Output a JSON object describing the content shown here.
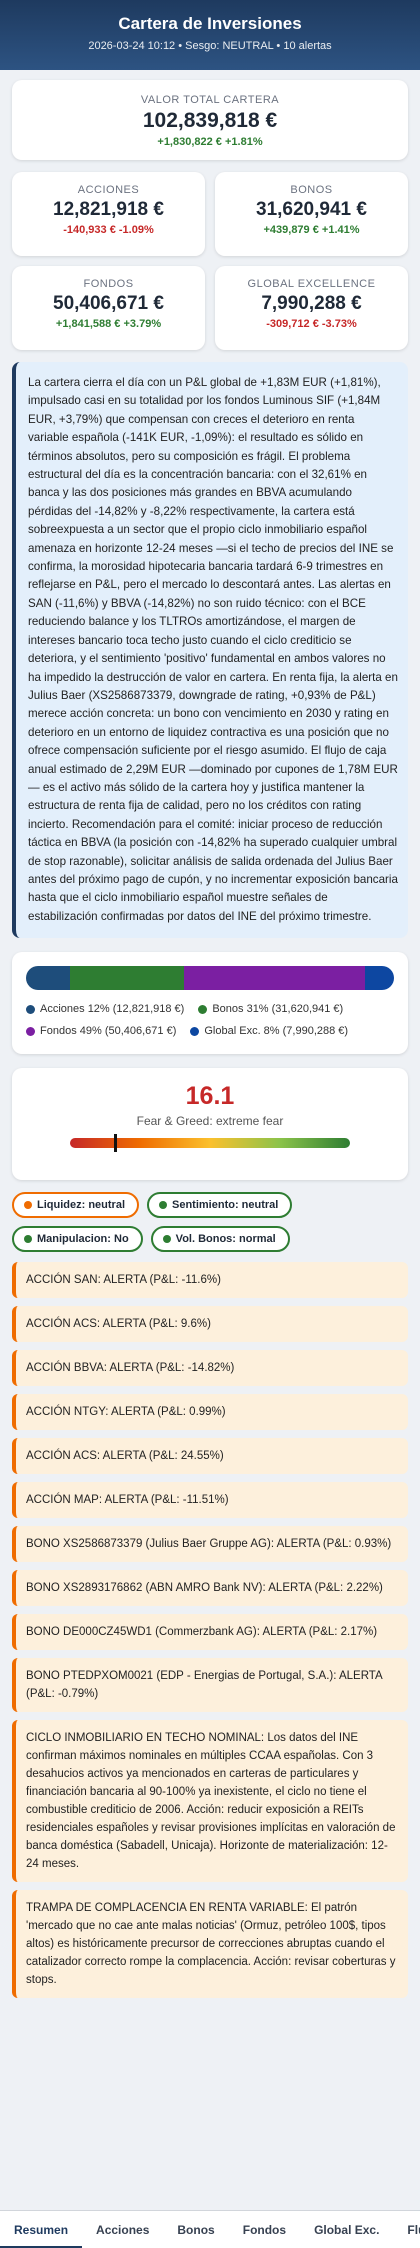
{
  "header": {
    "title": "Cartera de Inversiones",
    "subtitle": "2026-03-24 10:12 • Sesgo: NEUTRAL • 10 alertas"
  },
  "total": {
    "label": "VALOR TOTAL CARTERA",
    "value": "102,839,818 €",
    "change": "+1,830,822 € +1.81%"
  },
  "cards": [
    {
      "label": "ACCIONES",
      "value": "12,821,918 €",
      "change": "-140,933 € -1.09%",
      "dir": "neg"
    },
    {
      "label": "BONOS",
      "value": "31,620,941 €",
      "change": "+439,879 € +1.41%",
      "dir": "pos"
    },
    {
      "label": "FONDOS",
      "value": "50,406,671 €",
      "change": "+1,841,588 € +3.79%",
      "dir": "pos"
    },
    {
      "label": "GLOBAL EXCELLENCE",
      "value": "7,990,288 €",
      "change": "-309,712 € -3.73%",
      "dir": "neg"
    }
  ],
  "summary": "La cartera cierra el día con un P&L global de +1,83M EUR (+1,81%), impulsado casi en su totalidad por los fondos Luminous SIF (+1,84M EUR, +3,79%) que compensan con creces el deterioro en renta variable española (-141K EUR, -1,09%): el resultado es sólido en términos absolutos, pero su composición es frágil. El problema estructural del día es la concentración bancaria: con el 32,61% en banca y las dos posiciones más grandes en BBVA acumulando pérdidas del -14,82% y -8,22% respectivamente, la cartera está sobreexpuesta a un sector que el propio ciclo inmobiliario español amenaza en horizonte 12-24 meses —si el techo de precios del INE se confirma, la morosidad hipotecaria bancaria tardará 6-9 trimestres en reflejarse en P&L, pero el mercado lo descontará antes. Las alertas en SAN (-11,6%) y BBVA (-14,82%) no son ruido técnico: con el BCE reduciendo balance y los TLTROs amortizándose, el margen de intereses bancario toca techo justo cuando el ciclo crediticio se deteriora, y el sentimiento 'positivo' fundamental en ambos valores no ha impedido la destrucción de valor en cartera. En renta fija, la alerta en Julius Baer (XS2586873379, downgrade de rating, +0,93% de P&L) merece acción concreta: un bono con vencimiento en 2030 y rating en deterioro en un entorno de liquidez contractiva es una posición que no ofrece compensación suficiente por el riesgo asumido. El flujo de caja anual estimado de 2,29M EUR —dominado por cupones de 1,78M EUR— es el activo más sólido de la cartera hoy y justifica mantener la estructura de renta fija de calidad, pero no los créditos con rating incierto. Recomendación para el comité: iniciar proceso de reducción táctica en BBVA (la posición con -14,82% ha superado cualquier umbral de stop razonable), solicitar análisis de salida ordenada del Julius Baer antes del próximo pago de cupón, y no incrementar exposición bancaria hasta que el ciclo inmobiliario español muestre señales de estabilización confirmadas por datos del INE del próximo trimestre.",
  "allocation": {
    "segments": [
      {
        "name": "Acciones",
        "pct": 12,
        "color": "#1e4d7b",
        "legend": "Acciones 12% (12,821,918 €)"
      },
      {
        "name": "Bonos",
        "pct": 31,
        "color": "#2e7d32",
        "legend": "Bonos 31% (31,620,941 €)"
      },
      {
        "name": "Fondos",
        "pct": 49,
        "color": "#7b1fa2",
        "legend": "Fondos 49% (50,406,671 €)"
      },
      {
        "name": "Global Exc.",
        "pct": 8,
        "color": "#0d47a1",
        "legend": "Global Exc. 8% (7,990,288 €)"
      }
    ]
  },
  "fear_greed": {
    "score": "16.1",
    "score_value": 16.1,
    "label": "Fear & Greed: extreme fear"
  },
  "pills": [
    {
      "text": "Liquidez: neutral",
      "dot": "#ef6c00",
      "style": "orange"
    },
    {
      "text": "Sentimiento: neutral",
      "dot": "#2e7d32",
      "style": "green"
    },
    {
      "text": "Manipulacion: No",
      "dot": "#2e7d32",
      "style": "green"
    },
    {
      "text": "Vol. Bonos: normal",
      "dot": "#2e7d32",
      "style": "green"
    }
  ],
  "alerts": [
    "ACCIÓN SAN: ALERTA (P&L: -11.6%)",
    "ACCIÓN ACS: ALERTA (P&L: 9.6%)",
    "ACCIÓN BBVA: ALERTA (P&L: -14.82%)",
    "ACCIÓN NTGY: ALERTA (P&L: 0.99%)",
    "ACCIÓN ACS: ALERTA (P&L: 24.55%)",
    "ACCIÓN MAP: ALERTA (P&L: -11.51%)",
    "BONO XS2586873379 (Julius Baer Gruppe AG): ALERTA (P&L: 0.93%)",
    "BONO XS2893176862 (ABN AMRO Bank NV): ALERTA (P&L: 2.22%)",
    "BONO DE000CZ45WD1 (Commerzbank AG): ALERTA (P&L: 2.17%)",
    "BONO PTEDPXOM0021 (EDP - Energias de Portugal, S.A.): ALERTA (P&L: -0.79%)",
    "CICLO INMOBILIARIO EN TECHO NOMINAL: Los datos del INE confirman máximos nominales en múltiples CCAA españolas. Con 3 desahucios activos ya mencionados en carteras de particulares y financiación bancaria al 90-100% ya inexistente, el ciclo no tiene el combustible crediticio de 2006. Acción: reducir exposición a REITs residenciales españoles y revisar provisiones implícitas en valoración de banca doméstica (Sabadell, Unicaja). Horizonte de materialización: 12-24 meses.",
    "TRAMPA DE COMPLACENCIA EN RENTA VARIABLE: El patrón 'mercado que no cae ante malas noticias' (Ormuz, petróleo 100$, tipos altos) es históricamente precursor de correcciones abruptas cuando el catalizador correcto rompe la complacencia. Acción: revisar coberturas y stops."
  ],
  "tabs": [
    "Resumen",
    "Acciones",
    "Bonos",
    "Fondos",
    "Global Exc.",
    "Flujos"
  ]
}
